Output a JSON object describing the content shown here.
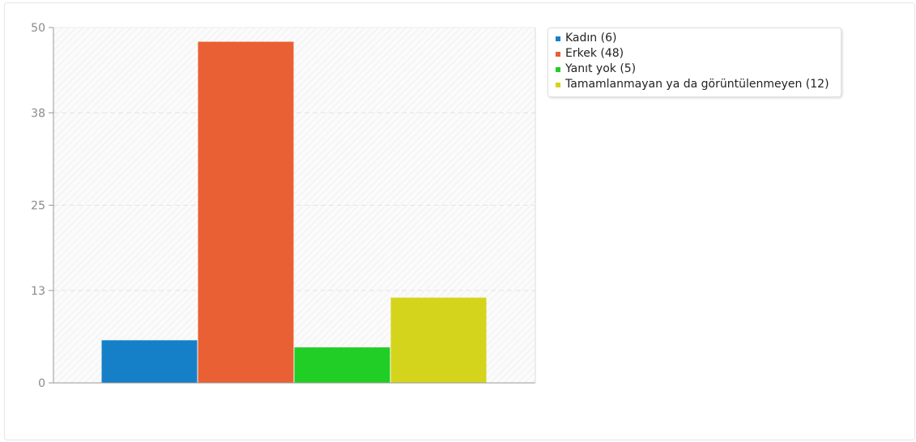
{
  "chart_data": {
    "type": "bar",
    "categories": [
      ""
    ],
    "series": [
      {
        "name": "Kadın (6)",
        "values": [
          6
        ],
        "color": "#1580c8"
      },
      {
        "name": "Erkek (48)",
        "values": [
          48
        ],
        "color": "#e86033"
      },
      {
        "name": "Yanıt yok (5)",
        "values": [
          5
        ],
        "color": "#21ce25"
      },
      {
        "name": "Tamamlanmayan ya da görüntülenmeyen (12)",
        "values": [
          12
        ],
        "color": "#d4d41c"
      }
    ],
    "title": "",
    "xlabel": "",
    "ylabel": "",
    "ylim": [
      0,
      50
    ],
    "yticks": [
      "0",
      "13",
      "25",
      "38",
      "50"
    ],
    "grid": true,
    "legend_position": "right"
  }
}
